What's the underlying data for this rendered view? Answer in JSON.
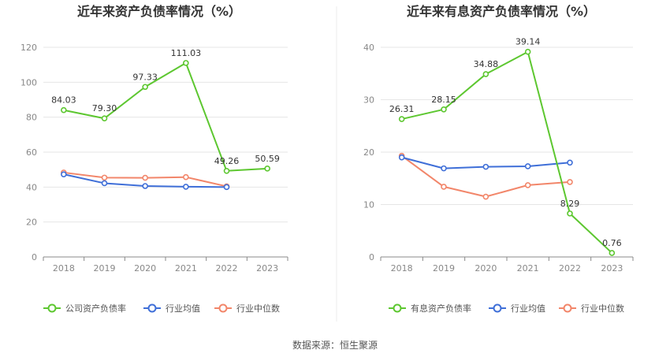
{
  "source": "数据来源：恒生聚源",
  "colors": {
    "green": "#5dc730",
    "blue": "#3f6fd8",
    "orange": "#f2866a",
    "grid": "#e6e6e6",
    "axis": "#888888"
  },
  "chart_data": [
    {
      "type": "line",
      "title": "近年来资产负债率情况（%）",
      "xlabel": "",
      "ylabel": "",
      "categories": [
        "2018",
        "2019",
        "2020",
        "2021",
        "2022",
        "2023"
      ],
      "ylim": [
        0,
        120
      ],
      "yticks": [
        0,
        20,
        40,
        60,
        80,
        100,
        120
      ],
      "grid": true,
      "legend_position": "bottom",
      "series": [
        {
          "name": "公司资产负债率",
          "color": "#5dc730",
          "values": [
            84.03,
            79.3,
            97.33,
            111.03,
            49.26,
            50.59
          ],
          "labels": [
            "84.03",
            "79.30",
            "97.33",
            "111.03",
            "49.26",
            "50.59"
          ]
        },
        {
          "name": "行业均值",
          "color": "#3f6fd8",
          "values": [
            47.3,
            42.2,
            40.6,
            40.2,
            40.0,
            null
          ],
          "labels": []
        },
        {
          "name": "行业中位数",
          "color": "#f2866a",
          "values": [
            48.3,
            45.4,
            45.3,
            45.7,
            40.4,
            null
          ],
          "labels": []
        }
      ]
    },
    {
      "type": "line",
      "title": "近年来有息资产负债率情况（%）",
      "xlabel": "",
      "ylabel": "",
      "categories": [
        "2018",
        "2019",
        "2020",
        "2021",
        "2022",
        "2023"
      ],
      "ylim": [
        0,
        40
      ],
      "yticks": [
        0,
        10,
        20,
        30,
        40
      ],
      "grid": true,
      "legend_position": "bottom",
      "series": [
        {
          "name": "有息资产负债率",
          "color": "#5dc730",
          "values": [
            26.31,
            28.15,
            34.88,
            39.14,
            8.29,
            0.76
          ],
          "labels": [
            "26.31",
            "28.15",
            "34.88",
            "39.14",
            "8.29",
            "0.76"
          ]
        },
        {
          "name": "行业均值",
          "color": "#3f6fd8",
          "values": [
            19.0,
            16.9,
            17.2,
            17.3,
            18.0,
            null
          ],
          "labels": []
        },
        {
          "name": "行业中位数",
          "color": "#f2866a",
          "values": [
            19.3,
            13.4,
            11.5,
            13.7,
            14.3,
            null
          ],
          "labels": []
        }
      ]
    }
  ]
}
